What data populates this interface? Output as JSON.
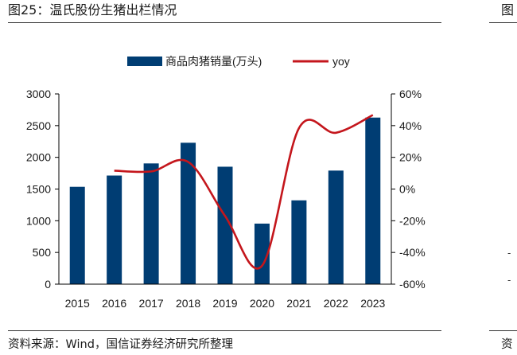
{
  "left_panel": {
    "title": "图25：温氏股份生猪出栏情况",
    "source": "资料来源：Wind，国信证券经济研究所整理"
  },
  "right_panel": {
    "title_fragment": "图",
    "source_fragment": "资"
  },
  "colors": {
    "bar": "#003d73",
    "line": "#c4161c"
  },
  "chart_data": {
    "type": "bar",
    "categories": [
      "2015",
      "2016",
      "2017",
      "2018",
      "2019",
      "2020",
      "2021",
      "2022",
      "2023"
    ],
    "series": [
      {
        "name": "商品肉猪销量(万头)",
        "type": "bar",
        "axis": "left",
        "values": [
          1535,
          1713,
          1904,
          2230,
          1852,
          955,
          1322,
          1791,
          2627
        ]
      },
      {
        "name": "yoy",
        "type": "line",
        "axis": "right",
        "unit": "%",
        "values": [
          null,
          11.6,
          11.1,
          17.1,
          -17.0,
          -48.4,
          38.4,
          35.5,
          46.7
        ]
      }
    ],
    "yleft": {
      "ticks": [
        "0",
        "500",
        "1000",
        "1500",
        "2000",
        "2500",
        "3000"
      ],
      "range": [
        0,
        3000
      ]
    },
    "yright": {
      "ticks": [
        "-60%",
        "-40%",
        "-20%",
        "0%",
        "20%",
        "40%",
        "60%"
      ],
      "range": [
        -60,
        60
      ]
    },
    "legend_position": "top-center",
    "grid": false
  }
}
